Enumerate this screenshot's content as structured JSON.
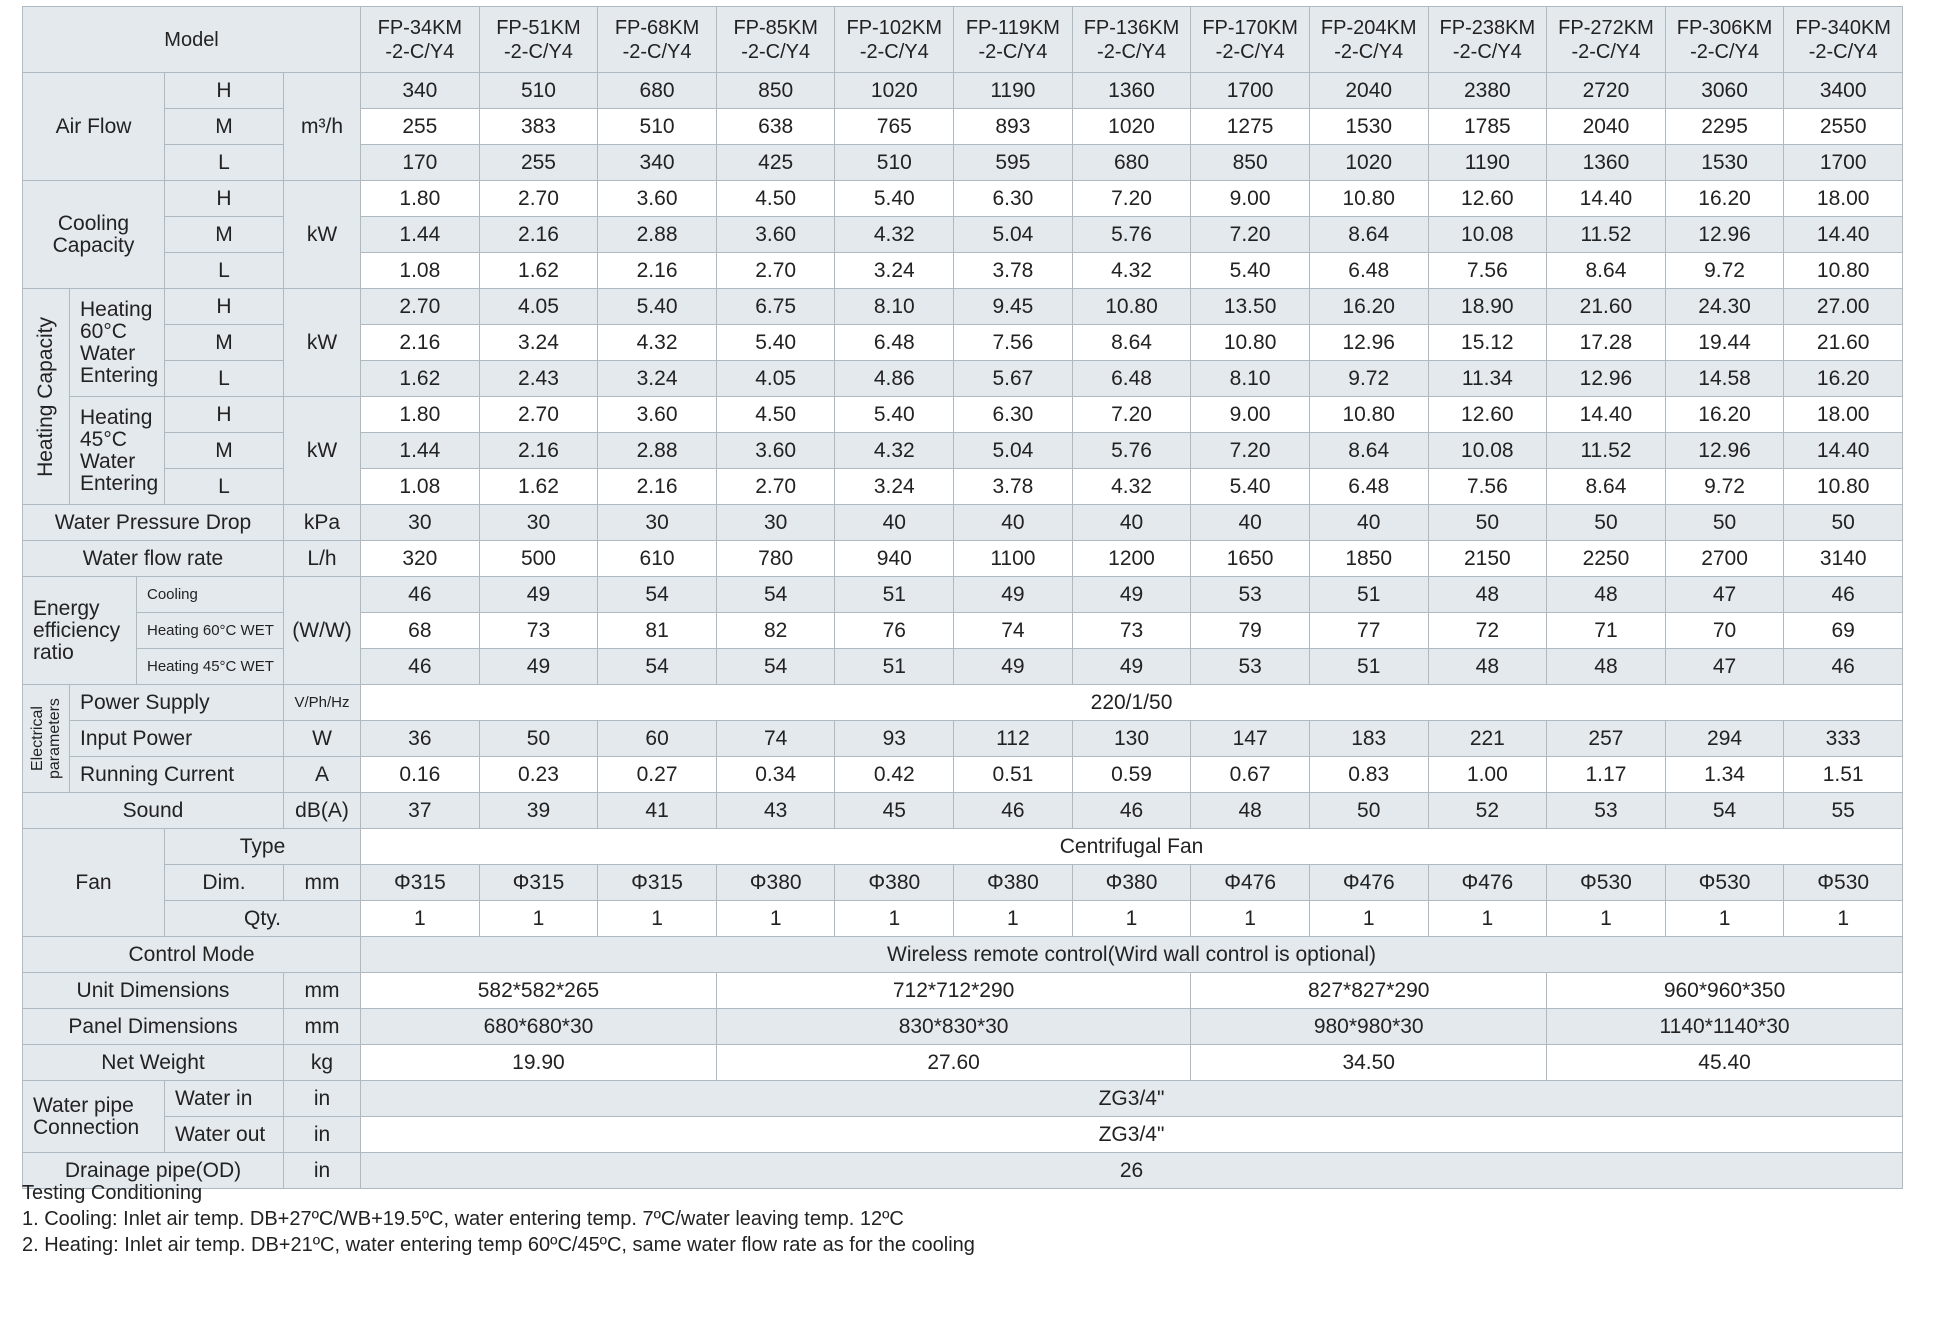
{
  "table": {
    "model_label": "Model",
    "models": [
      [
        "FP-34KM",
        "-2-C/Y4"
      ],
      [
        "FP-51KM",
        "-2-C/Y4"
      ],
      [
        "FP-68KM",
        "-2-C/Y4"
      ],
      [
        "FP-85KM",
        "-2-C/Y4"
      ],
      [
        "FP-102KM",
        "-2-C/Y4"
      ],
      [
        "FP-119KM",
        "-2-C/Y4"
      ],
      [
        "FP-136KM",
        "-2-C/Y4"
      ],
      [
        "FP-170KM",
        "-2-C/Y4"
      ],
      [
        "FP-204KM",
        "-2-C/Y4"
      ],
      [
        "FP-238KM",
        "-2-C/Y4"
      ],
      [
        "FP-272KM",
        "-2-C/Y4"
      ],
      [
        "FP-306KM",
        "-2-C/Y4"
      ],
      [
        "FP-340KM",
        "-2-C/Y4"
      ]
    ],
    "air_flow": {
      "label": "Air Flow",
      "unit": "m³/h",
      "levels": [
        "H",
        "M",
        "L"
      ],
      "values": [
        [
          340,
          510,
          680,
          850,
          1020,
          1190,
          1360,
          1700,
          2040,
          2380,
          2720,
          3060,
          3400
        ],
        [
          255,
          383,
          510,
          638,
          765,
          893,
          1020,
          1275,
          1530,
          1785,
          2040,
          2295,
          2550
        ],
        [
          170,
          255,
          340,
          425,
          510,
          595,
          680,
          850,
          1020,
          1190,
          1360,
          1530,
          1700
        ]
      ]
    },
    "cooling_capacity": {
      "label": "Cooling Capacity",
      "unit": "kW",
      "levels": [
        "H",
        "M",
        "L"
      ],
      "values": [
        [
          "1.80",
          "2.70",
          "3.60",
          "4.50",
          "5.40",
          "6.30",
          "7.20",
          "9.00",
          "10.80",
          "12.60",
          "14.40",
          "16.20",
          "18.00"
        ],
        [
          "1.44",
          "2.16",
          "2.88",
          "3.60",
          "4.32",
          "5.04",
          "5.76",
          "7.20",
          "8.64",
          "10.08",
          "11.52",
          "12.96",
          "14.40"
        ],
        [
          "1.08",
          "1.62",
          "2.16",
          "2.70",
          "3.24",
          "3.78",
          "4.32",
          "5.40",
          "6.48",
          "7.56",
          "8.64",
          "9.72",
          "10.80"
        ]
      ]
    },
    "heating_capacity": {
      "label": "Heating Capacity",
      "groups": [
        {
          "label": "Heating 60°C Water Entering",
          "unit": "kW",
          "levels": [
            "H",
            "M",
            "L"
          ],
          "values": [
            [
              "2.70",
              "4.05",
              "5.40",
              "6.75",
              "8.10",
              "9.45",
              "10.80",
              "13.50",
              "16.20",
              "18.90",
              "21.60",
              "24.30",
              "27.00"
            ],
            [
              "2.16",
              "3.24",
              "4.32",
              "5.40",
              "6.48",
              "7.56",
              "8.64",
              "10.80",
              "12.96",
              "15.12",
              "17.28",
              "19.44",
              "21.60"
            ],
            [
              "1.62",
              "2.43",
              "3.24",
              "4.05",
              "4.86",
              "5.67",
              "6.48",
              "8.10",
              "9.72",
              "11.34",
              "12.96",
              "14.58",
              "16.20"
            ]
          ]
        },
        {
          "label": "Heating 45°C Water Entering",
          "unit": "kW",
          "levels": [
            "H",
            "M",
            "L"
          ],
          "values": [
            [
              "1.80",
              "2.70",
              "3.60",
              "4.50",
              "5.40",
              "6.30",
              "7.20",
              "9.00",
              "10.80",
              "12.60",
              "14.40",
              "16.20",
              "18.00"
            ],
            [
              "1.44",
              "2.16",
              "2.88",
              "3.60",
              "4.32",
              "5.04",
              "5.76",
              "7.20",
              "8.64",
              "10.08",
              "11.52",
              "12.96",
              "14.40"
            ],
            [
              "1.08",
              "1.62",
              "2.16",
              "2.70",
              "3.24",
              "3.78",
              "4.32",
              "5.40",
              "6.48",
              "7.56",
              "8.64",
              "9.72",
              "10.80"
            ]
          ]
        }
      ]
    },
    "water_pressure_drop": {
      "label": "Water Pressure Drop",
      "unit": "kPa",
      "values": [
        30,
        30,
        30,
        30,
        40,
        40,
        40,
        40,
        40,
        50,
        50,
        50,
        50
      ]
    },
    "water_flow_rate": {
      "label": "Water flow rate",
      "unit": "L/h",
      "values": [
        320,
        500,
        610,
        780,
        940,
        1100,
        1200,
        1650,
        1850,
        2150,
        2250,
        2700,
        3140
      ]
    },
    "energy_efficiency_ratio": {
      "label": "Energy efficiency ratio",
      "unit": "(W/W)",
      "sub_labels": [
        "Cooling",
        "Heating 60°C WET",
        "Heating 45°C WET"
      ],
      "values": [
        [
          46,
          49,
          54,
          54,
          51,
          49,
          49,
          53,
          51,
          48,
          48,
          47,
          46
        ],
        [
          68,
          73,
          81,
          82,
          76,
          74,
          73,
          79,
          77,
          72,
          71,
          70,
          69
        ],
        [
          46,
          49,
          54,
          54,
          51,
          49,
          49,
          53,
          51,
          48,
          48,
          47,
          46
        ]
      ]
    },
    "electrical": {
      "label": "Electrical parameters",
      "power_supply": {
        "label": "Power Supply",
        "unit": "V/Ph/Hz",
        "value": "220/1/50"
      },
      "input_power": {
        "label": "Input Power",
        "unit": "W",
        "values": [
          36,
          50,
          60,
          74,
          93,
          112,
          130,
          147,
          183,
          221,
          257,
          294,
          333
        ]
      },
      "running_current": {
        "label": "Running Current",
        "unit": "A",
        "values": [
          "0.16",
          "0.23",
          "0.27",
          "0.34",
          "0.42",
          "0.51",
          "0.59",
          "0.67",
          "0.83",
          "1.00",
          "1.17",
          "1.34",
          "1.51"
        ]
      }
    },
    "sound": {
      "label": "Sound",
      "unit": "dB(A)",
      "values": [
        37,
        39,
        41,
        43,
        45,
        46,
        46,
        48,
        50,
        52,
        53,
        54,
        55
      ]
    },
    "fan": {
      "label": "Fan",
      "type": {
        "label": "Type",
        "value": "Centrifugal Fan"
      },
      "dim": {
        "label": "Dim.",
        "unit": "mm",
        "values": [
          "Φ315",
          "Φ315",
          "Φ315",
          "Φ380",
          "Φ380",
          "Φ380",
          "Φ380",
          "Φ476",
          "Φ476",
          "Φ476",
          "Φ530",
          "Φ530",
          "Φ530"
        ]
      },
      "qty": {
        "label": "Qty.",
        "values": [
          1,
          1,
          1,
          1,
          1,
          1,
          1,
          1,
          1,
          1,
          1,
          1,
          1
        ]
      }
    },
    "control_mode": {
      "label": "Control Mode",
      "value": "Wireless remote control(Wird wall control is optional)"
    },
    "unit_dimensions": {
      "label": "Unit Dimensions",
      "unit": "mm",
      "values": [
        "582*582*265",
        "712*712*290",
        "827*827*290",
        "960*960*350"
      ]
    },
    "panel_dimensions": {
      "label": "Panel Dimensions",
      "unit": "mm",
      "values": [
        "680*680*30",
        "830*830*30",
        "980*980*30",
        "1140*1140*30"
      ]
    },
    "net_weight": {
      "label": "Net Weight",
      "unit": "kg",
      "values": [
        "19.90",
        "27.60",
        "34.50",
        "45.40"
      ]
    },
    "water_pipe": {
      "label": "Water pipe Connection",
      "water_in": {
        "label": "Water in",
        "unit": "in",
        "value": "ZG3/4\""
      },
      "water_out": {
        "label": "Water out",
        "unit": "in",
        "value": "ZG3/4\""
      }
    },
    "drainage": {
      "label": "Drainage pipe(OD)",
      "unit": "in",
      "value": 26
    }
  },
  "notes": {
    "title": "Testing Conditioning",
    "lines": [
      "1. Cooling: Inlet air temp. DB+27ºC/WB+19.5ºC, water entering temp. 7ºC/water leaving temp. 12ºC",
      "2. Heating: Inlet air temp. DB+21ºC, water entering temp 60ºC/45ºC, same water flow rate as for the cooling"
    ]
  }
}
